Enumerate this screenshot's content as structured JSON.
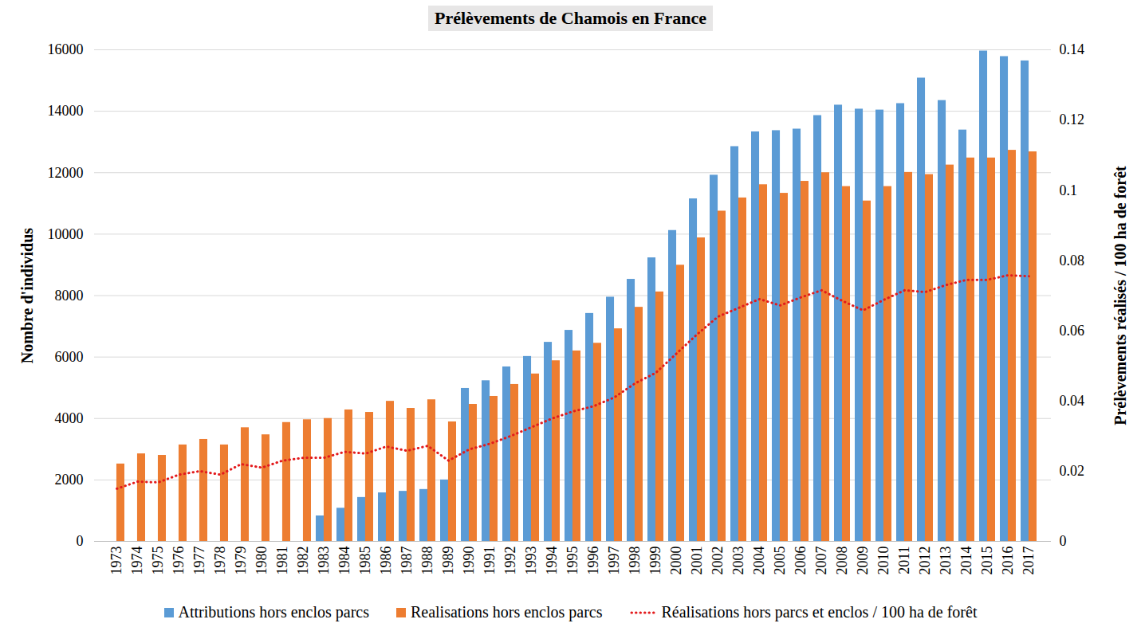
{
  "chart_data": {
    "type": "bar",
    "title": "Prélèvements de Chamois en France",
    "y_label": "Nombre d'individus",
    "y2_label": "Prélèvements réalisés / 100 ha de forêt",
    "categories": [
      "1973",
      "1974",
      "1975",
      "1976",
      "1977",
      "1978",
      "1979",
      "1980",
      "1981",
      "1982",
      "1983",
      "1984",
      "1985",
      "1986",
      "1987",
      "1988",
      "1989",
      "1990",
      "1991",
      "1992",
      "1993",
      "1994",
      "1995",
      "1996",
      "1997",
      "1998",
      "1999",
      "2000",
      "2001",
      "2002",
      "2003",
      "2004",
      "2005",
      "2006",
      "2007",
      "2008",
      "2009",
      "2010",
      "2011",
      "2012",
      "2013",
      "2014",
      "2015",
      "2016",
      "2017"
    ],
    "series": [
      {
        "name": "Attributions hors enclos parcs",
        "type": "bar",
        "color": "#5b9bd5",
        "values": [
          null,
          null,
          null,
          null,
          null,
          null,
          null,
          null,
          null,
          null,
          830,
          1080,
          1430,
          1580,
          1630,
          1690,
          2000,
          4980,
          5230,
          5680,
          6020,
          6480,
          6870,
          7420,
          7950,
          8530,
          9230,
          10120,
          11150,
          11920,
          12850,
          13330,
          13370,
          13420,
          13860,
          14200,
          14070,
          14040,
          14250,
          15080,
          14350,
          13390,
          15960,
          15780,
          15640
        ]
      },
      {
        "name": "Realisations hors enclos parcs",
        "type": "bar",
        "color": "#ed7d31",
        "values": [
          2520,
          2850,
          2800,
          3140,
          3320,
          3140,
          3700,
          3470,
          3870,
          3960,
          4000,
          4280,
          4200,
          4560,
          4330,
          4610,
          3890,
          4460,
          4720,
          5110,
          5450,
          5880,
          6200,
          6450,
          6920,
          7620,
          8120,
          8990,
          9880,
          10750,
          11180,
          11610,
          11330,
          11720,
          12000,
          11550,
          11080,
          11550,
          12010,
          11940,
          12250,
          12480,
          12480,
          12730,
          12680
        ]
      },
      {
        "name": "Réalisations hors parcs et enclos / 100 ha de forêt",
        "type": "line",
        "axis": "y2",
        "color": "#e31a1c",
        "line_style": "dotted",
        "values": [
          0.015,
          0.017,
          0.0168,
          0.019,
          0.02,
          0.019,
          0.022,
          0.021,
          0.023,
          0.0238,
          0.0238,
          0.0255,
          0.025,
          0.027,
          0.0258,
          0.0272,
          0.023,
          0.0262,
          0.0278,
          0.03,
          0.0325,
          0.035,
          0.037,
          0.0385,
          0.041,
          0.045,
          0.048,
          0.0535,
          0.059,
          0.064,
          0.0665,
          0.069,
          0.0672,
          0.0695,
          0.0715,
          0.0685,
          0.0658,
          0.0688,
          0.0715,
          0.071,
          0.073,
          0.0745,
          0.0745,
          0.0758,
          0.0755
        ]
      }
    ],
    "ylim": [
      0,
      16000
    ],
    "yticks": [
      0,
      2000,
      4000,
      6000,
      8000,
      10000,
      12000,
      14000,
      16000
    ],
    "y2lim": [
      0,
      0.14
    ],
    "y2ticks": [
      0,
      0.02,
      0.04,
      0.06,
      0.08,
      0.1,
      0.12,
      0.14
    ],
    "grid": true,
    "legend": "bottom"
  }
}
